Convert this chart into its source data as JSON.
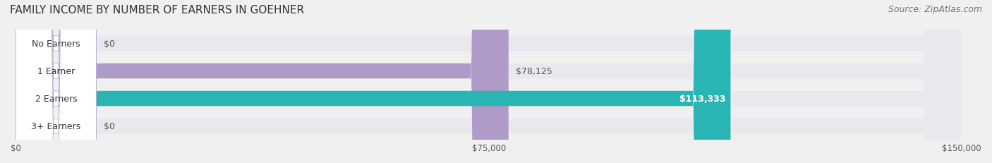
{
  "title": "FAMILY INCOME BY NUMBER OF EARNERS IN GOEHNER",
  "source": "Source: ZipAtlas.com",
  "categories": [
    "No Earners",
    "1 Earner",
    "2 Earners",
    "3+ Earners"
  ],
  "values": [
    0,
    78125,
    113333,
    0
  ],
  "bar_colors": [
    "#a8b8e8",
    "#b09ac8",
    "#2ab5b5",
    "#a8b8e8"
  ],
  "label_colors": [
    "#555555",
    "#555555",
    "#ffffff",
    "#555555"
  ],
  "value_labels": [
    "$0",
    "$78,125",
    "$113,333",
    "$0"
  ],
  "xlim": [
    0,
    150000
  ],
  "xtick_values": [
    0,
    75000,
    150000
  ],
  "xtick_labels": [
    "$0",
    "$75,000",
    "$150,000"
  ],
  "background_color": "#f0f0f0",
  "bar_background_color": "#e8e8ee",
  "title_fontsize": 11,
  "source_fontsize": 9,
  "bar_height": 0.55,
  "label_fontsize": 9
}
